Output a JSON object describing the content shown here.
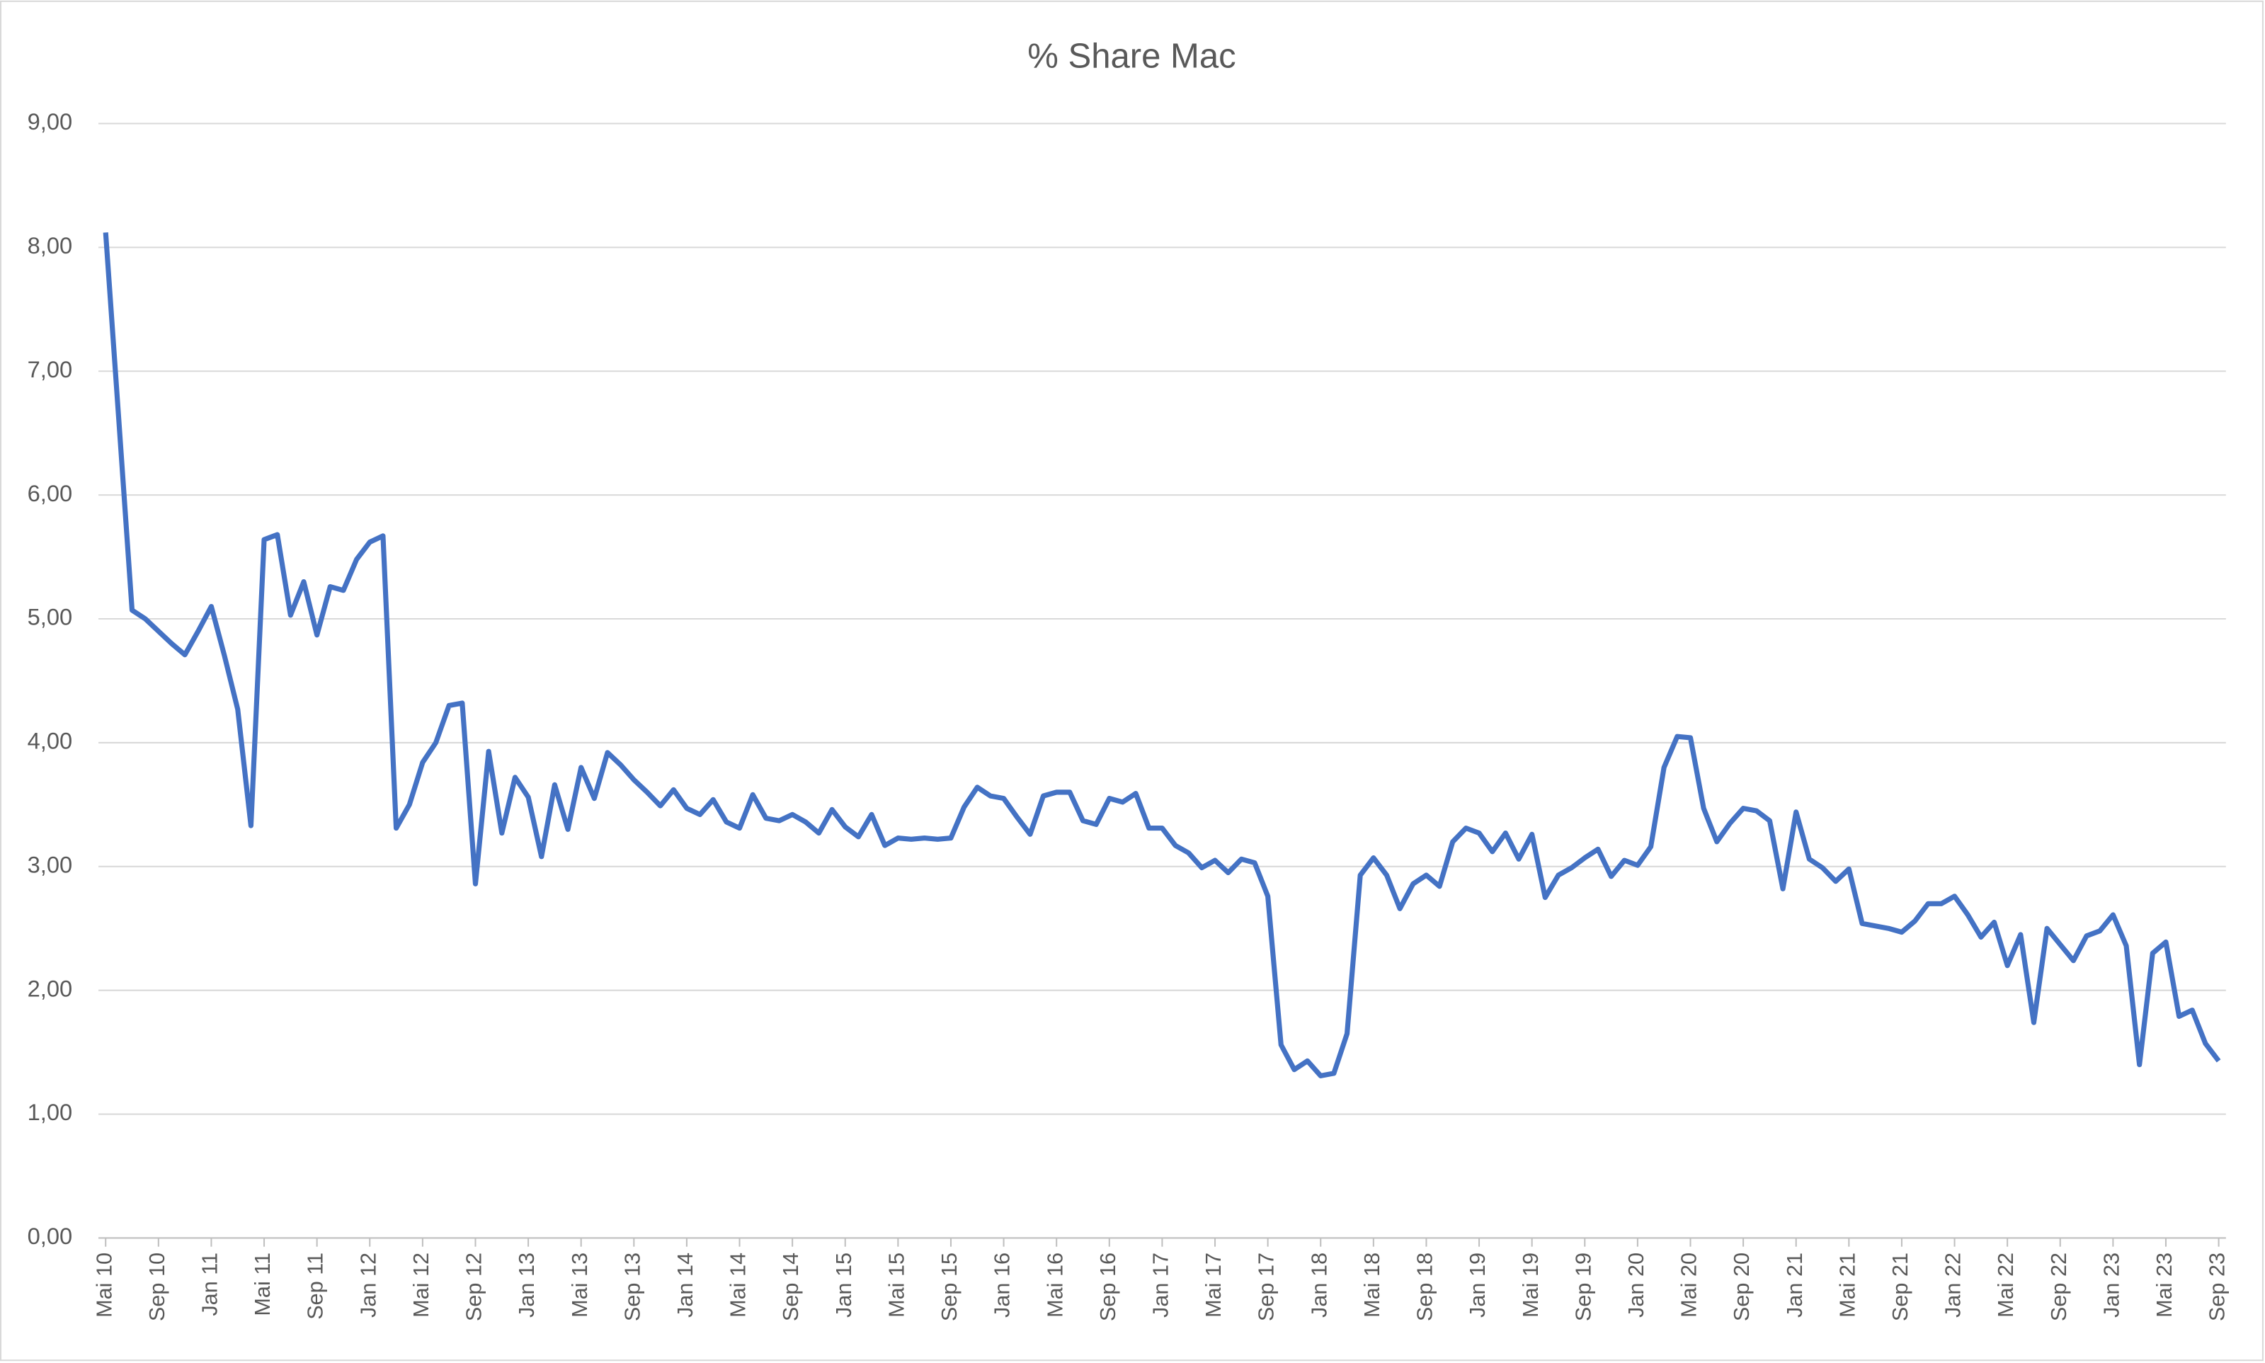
{
  "chart_data": {
    "type": "line",
    "title": "% Share Mac",
    "categories": [
      "Mai 10",
      null,
      null,
      null,
      "Sep 10",
      null,
      null,
      null,
      "Jan 11",
      null,
      null,
      null,
      "Mai 11",
      null,
      null,
      null,
      "Sep 11",
      null,
      null,
      null,
      "Jan 12",
      null,
      null,
      null,
      "Mai 12",
      null,
      null,
      null,
      "Sep 12",
      null,
      null,
      null,
      "Jan 13",
      null,
      null,
      null,
      "Mai 13",
      null,
      null,
      null,
      "Sep 13",
      null,
      null,
      null,
      "Jan 14",
      null,
      null,
      null,
      "Mai 14",
      null,
      null,
      null,
      "Sep 14",
      null,
      null,
      null,
      "Jan 15",
      null,
      null,
      null,
      "Mai 15",
      null,
      null,
      null,
      "Sep 15",
      null,
      null,
      null,
      "Jan 16",
      null,
      null,
      null,
      "Mai 16",
      null,
      null,
      null,
      "Sep 16",
      null,
      null,
      null,
      "Jan 17",
      null,
      null,
      null,
      "Mai 17",
      null,
      null,
      null,
      "Sep 17",
      null,
      null,
      null,
      "Jan 18",
      null,
      null,
      null,
      "Mai 18",
      null,
      null,
      null,
      "Sep 18",
      null,
      null,
      null,
      "Jan 19",
      null,
      null,
      null,
      "Mai 19",
      null,
      null,
      null,
      "Sep 19",
      null,
      null,
      null,
      "Jan 20",
      null,
      null,
      null,
      "Mai 20",
      null,
      null,
      null,
      "Sep 20",
      null,
      null,
      null,
      "Jan 21",
      null,
      null,
      null,
      "Mai 21",
      null,
      null,
      null,
      "Sep 21",
      null,
      null,
      null,
      "Jan 22",
      null,
      null,
      null,
      "Mai 22",
      null,
      null,
      null,
      "Sep 22",
      null,
      null,
      null,
      "Jan 23",
      null,
      null,
      null,
      "Mai 23",
      null,
      null,
      null,
      "Sep 23"
    ],
    "series": [
      {
        "color": "#4472c4",
        "values": [
          8.12,
          6.6,
          5.07,
          5.0,
          4.9,
          4.8,
          4.71,
          4.9,
          5.1,
          4.7,
          4.27,
          3.33,
          5.64,
          5.68,
          5.03,
          5.3,
          4.87,
          5.26,
          5.23,
          5.48,
          5.62,
          5.67,
          3.31,
          3.5,
          3.84,
          4.0,
          4.3,
          4.32,
          2.86,
          3.93,
          3.27,
          3.72,
          3.56,
          3.08,
          3.66,
          3.3,
          3.8,
          3.55,
          3.92,
          3.82,
          3.7,
          3.6,
          3.49,
          3.62,
          3.47,
          3.42,
          3.54,
          3.36,
          3.31,
          3.58,
          3.39,
          3.37,
          3.42,
          3.36,
          3.27,
          3.46,
          3.32,
          3.24,
          3.42,
          3.17,
          3.23,
          3.22,
          3.23,
          3.22,
          3.23,
          3.48,
          3.64,
          3.57,
          3.55,
          3.4,
          3.26,
          3.57,
          3.6,
          3.6,
          3.37,
          3.34,
          3.55,
          3.52,
          3.59,
          3.31,
          3.31,
          3.17,
          3.11,
          2.99,
          3.05,
          2.95,
          3.06,
          3.03,
          2.76,
          1.56,
          1.36,
          1.43,
          1.31,
          1.33,
          1.65,
          2.93,
          3.07,
          2.93,
          2.66,
          2.86,
          2.93,
          2.84,
          3.2,
          3.31,
          3.27,
          3.12,
          3.27,
          3.06,
          3.26,
          2.75,
          2.93,
          2.99,
          3.07,
          3.14,
          2.92,
          3.05,
          3.01,
          3.16,
          3.8,
          4.05,
          4.04,
          3.47,
          3.2,
          3.35,
          3.47,
          3.45,
          3.37,
          2.82,
          3.44,
          3.06,
          2.99,
          2.88,
          2.98,
          2.54,
          2.52,
          2.5,
          2.47,
          2.56,
          2.7,
          2.7,
          2.76,
          2.61,
          2.43,
          2.55,
          2.2,
          2.45,
          1.74,
          2.5,
          2.37,
          2.24,
          2.44,
          2.48,
          2.61,
          2.36,
          1.4,
          2.3,
          2.39,
          1.79,
          1.84,
          1.57,
          1.43
        ]
      }
    ],
    "ylim": [
      0,
      9
    ],
    "yticks": [
      {
        "value": 0,
        "label": "0,00"
      },
      {
        "value": 1,
        "label": "1,00"
      },
      {
        "value": 2,
        "label": "2,00"
      },
      {
        "value": 3,
        "label": "3,00"
      },
      {
        "value": 4,
        "label": "4,00"
      },
      {
        "value": 5,
        "label": "5,00"
      },
      {
        "value": 6,
        "label": "6,00"
      },
      {
        "value": 7,
        "label": "7,00"
      },
      {
        "value": 8,
        "label": "8,00"
      },
      {
        "value": 9,
        "label": "9,00"
      }
    ],
    "grid": true
  }
}
